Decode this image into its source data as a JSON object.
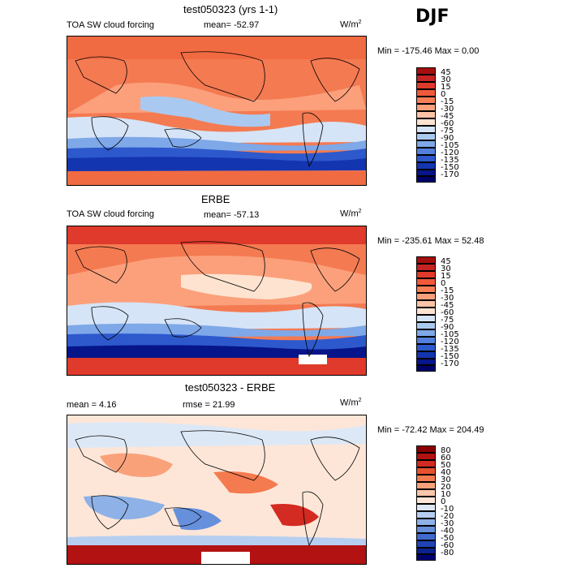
{
  "season": "DJF",
  "units": "W/m",
  "units_sup": "2",
  "panels": [
    {
      "title": "test050323 (yrs 1-1)",
      "left_label": "TOA SW cloud forcing",
      "stat1": "mean= -52.97",
      "stat2": "",
      "minmax": "Min = -175.46 Max =   0.00",
      "levels": [
        "45",
        "30",
        "15",
        "0",
        "-15",
        "-30",
        "-45",
        "-60",
        "-75",
        "-90",
        "-105",
        "-120",
        "-135",
        "-150",
        "-170"
      ],
      "colors": [
        "#a50f0f",
        "#c62323",
        "#df3a2b",
        "#f05a3b",
        "#f77e55",
        "#fba07b",
        "#fdc3a6",
        "#fde3d0",
        "#d6e4f7",
        "#aac9f0",
        "#7ea8e8",
        "#5280dc",
        "#2d59cc",
        "#1435b0",
        "#06158a",
        "#00006b"
      ]
    },
    {
      "title": "ERBE",
      "left_label": "TOA SW cloud forcing",
      "stat1": "mean= -57.13",
      "stat2": "",
      "minmax": "Min = -235.61 Max =  52.48",
      "levels": [
        "45",
        "30",
        "15",
        "0",
        "-15",
        "-30",
        "-45",
        "-60",
        "-75",
        "-90",
        "-105",
        "-120",
        "-135",
        "-150",
        "-170"
      ],
      "colors": [
        "#a50f0f",
        "#c62323",
        "#df3a2b",
        "#f05a3b",
        "#f77e55",
        "#fba07b",
        "#fdc3a6",
        "#fde3d0",
        "#d6e4f7",
        "#aac9f0",
        "#7ea8e8",
        "#5280dc",
        "#2d59cc",
        "#1435b0",
        "#06158a",
        "#00006b"
      ]
    },
    {
      "title": "test050323 - ERBE",
      "left_label": "mean =   4.16",
      "stat1": "",
      "stat2": "rmse =  21.99",
      "minmax": "Min = -72.42 Max = 204.49",
      "levels": [
        "80",
        "60",
        "50",
        "40",
        "30",
        "20",
        "10",
        "0",
        "-10",
        "-20",
        "-30",
        "-40",
        "-50",
        "-60",
        "-80"
      ],
      "colors": [
        "#8b0000",
        "#b31212",
        "#d32a22",
        "#e8512f",
        "#f47a4f",
        "#f9a27a",
        "#fcc6ab",
        "#fde6d8",
        "#dde8f6",
        "#b6cff0",
        "#8eb1e7",
        "#6690dc",
        "#3f6ace",
        "#1f44b4",
        "#0a218f",
        "#000070"
      ]
    }
  ]
}
